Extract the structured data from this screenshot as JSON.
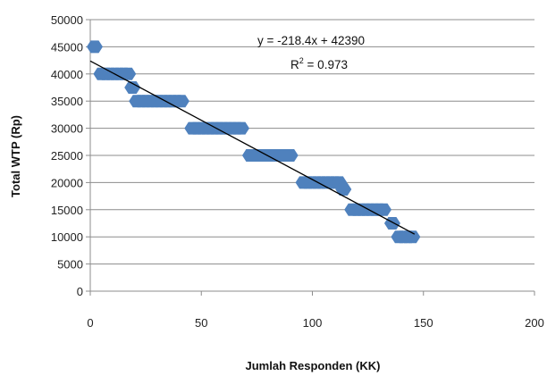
{
  "chart_data": {
    "type": "scatter",
    "xlabel": "Jumlah Responden (KK)",
    "ylabel": "Total WTP (Rp)",
    "xlim": [
      0,
      200
    ],
    "ylim": [
      0,
      50000
    ],
    "x_ticks": [
      "0",
      "50",
      "100",
      "150",
      "200"
    ],
    "y_ticks": [
      "0",
      "5000",
      "10000",
      "15000",
      "20000",
      "25000",
      "30000",
      "35000",
      "40000",
      "45000",
      "50000"
    ],
    "grid": "horizontal",
    "series": [
      {
        "marker_color": "#4F81BD",
        "points": [
          {
            "x": 2,
            "y": 45000
          },
          {
            "x": 5,
            "y": 40000
          },
          {
            "x": 7,
            "y": 40000
          },
          {
            "x": 9,
            "y": 40000
          },
          {
            "x": 11,
            "y": 40000
          },
          {
            "x": 13,
            "y": 40000
          },
          {
            "x": 15,
            "y": 40000
          },
          {
            "x": 17,
            "y": 40000
          },
          {
            "x": 19,
            "y": 37500
          },
          {
            "x": 21,
            "y": 35000
          },
          {
            "x": 23,
            "y": 35000
          },
          {
            "x": 25,
            "y": 35000
          },
          {
            "x": 27,
            "y": 35000
          },
          {
            "x": 29,
            "y": 35000
          },
          {
            "x": 31,
            "y": 35000
          },
          {
            "x": 33,
            "y": 35000
          },
          {
            "x": 35,
            "y": 35000
          },
          {
            "x": 37,
            "y": 35000
          },
          {
            "x": 39,
            "y": 35000
          },
          {
            "x": 41,
            "y": 35000
          },
          {
            "x": 46,
            "y": 30000
          },
          {
            "x": 48,
            "y": 30000
          },
          {
            "x": 50,
            "y": 30000
          },
          {
            "x": 52,
            "y": 30000
          },
          {
            "x": 54,
            "y": 30000
          },
          {
            "x": 56,
            "y": 30000
          },
          {
            "x": 58,
            "y": 30000
          },
          {
            "x": 60,
            "y": 30000
          },
          {
            "x": 62,
            "y": 30000
          },
          {
            "x": 64,
            "y": 30000
          },
          {
            "x": 66,
            "y": 30000
          },
          {
            "x": 68,
            "y": 30000
          },
          {
            "x": 72,
            "y": 25000
          },
          {
            "x": 74,
            "y": 25000
          },
          {
            "x": 76,
            "y": 25000
          },
          {
            "x": 78,
            "y": 25000
          },
          {
            "x": 80,
            "y": 25000
          },
          {
            "x": 82,
            "y": 25000
          },
          {
            "x": 84,
            "y": 25000
          },
          {
            "x": 86,
            "y": 25000
          },
          {
            "x": 88,
            "y": 25000
          },
          {
            "x": 90,
            "y": 25000
          },
          {
            "x": 96,
            "y": 20000
          },
          {
            "x": 98,
            "y": 20000
          },
          {
            "x": 100,
            "y": 20000
          },
          {
            "x": 102,
            "y": 20000
          },
          {
            "x": 104,
            "y": 20000
          },
          {
            "x": 106,
            "y": 20000
          },
          {
            "x": 108,
            "y": 20000
          },
          {
            "x": 110,
            "y": 20000
          },
          {
            "x": 112,
            "y": 20000
          },
          {
            "x": 114,
            "y": 18750
          },
          {
            "x": 118,
            "y": 15000
          },
          {
            "x": 120,
            "y": 15000
          },
          {
            "x": 122,
            "y": 15000
          },
          {
            "x": 124,
            "y": 15000
          },
          {
            "x": 126,
            "y": 15000
          },
          {
            "x": 128,
            "y": 15000
          },
          {
            "x": 130,
            "y": 15000
          },
          {
            "x": 132,
            "y": 15000
          },
          {
            "x": 136,
            "y": 12500
          },
          {
            "x": 139,
            "y": 10000
          },
          {
            "x": 141,
            "y": 10000
          },
          {
            "x": 143,
            "y": 10000
          },
          {
            "x": 145,
            "y": 10000
          }
        ]
      }
    ],
    "trendline": {
      "slope": -218.4,
      "intercept": 42390,
      "x_range": [
        0,
        146
      ],
      "color": "#000000",
      "equation": "y = -218.4x + 42390",
      "r2_prefix": "R",
      "r2_exp": "2",
      "r2_suffix": " = 0.973"
    }
  }
}
